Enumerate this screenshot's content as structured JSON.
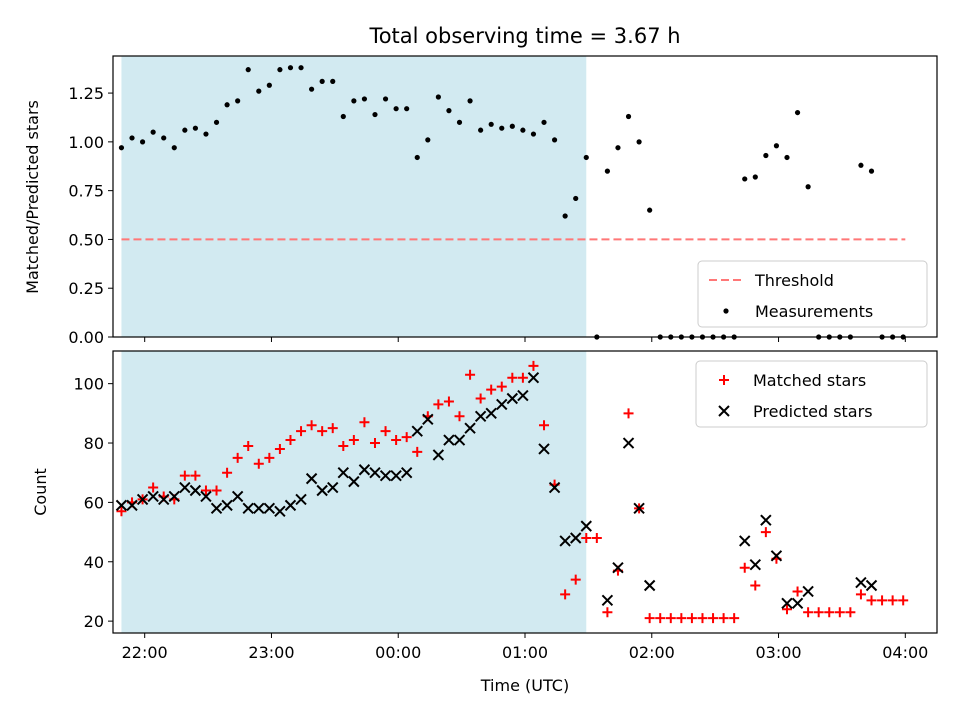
{
  "colors": {
    "shade": "#add8e6",
    "threshold": "#ff7777",
    "matched": "#ff0000",
    "predicted": "#000000",
    "measurement": "#000000"
  },
  "chart_data": [
    {
      "type": "scatter",
      "title": "Total observing time = 3.67 h",
      "xlabel": "",
      "ylabel": "Matched/Predicted stars",
      "xlim": [
        "21:45",
        "04:15"
      ],
      "ylim": [
        0,
        1.44
      ],
      "y_ticks": [
        "0.00",
        "0.25",
        "0.50",
        "0.75",
        "1.00",
        "1.25"
      ],
      "x_ticks": [
        "22:00",
        "23:00",
        "00:00",
        "01:00",
        "02:00",
        "03:00",
        "04:00"
      ],
      "shaded_span": [
        "21:49",
        "01:29"
      ],
      "threshold": {
        "name": "Threshold",
        "value": 0.5,
        "style": "dashed",
        "x_range": [
          "21:49",
          "04:00"
        ]
      },
      "legend": {
        "position": "lower right",
        "entries": [
          "Threshold",
          "Measurements"
        ]
      },
      "series": [
        {
          "name": "Measurements",
          "marker": "dot",
          "points": [
            [
              "21:49",
              0.97
            ],
            [
              "21:54",
              1.02
            ],
            [
              "21:59",
              1.0
            ],
            [
              "22:04",
              1.05
            ],
            [
              "22:09",
              1.02
            ],
            [
              "22:14",
              0.97
            ],
            [
              "22:19",
              1.06
            ],
            [
              "22:24",
              1.07
            ],
            [
              "22:29",
              1.04
            ],
            [
              "22:34",
              1.1
            ],
            [
              "22:39",
              1.19
            ],
            [
              "22:44",
              1.21
            ],
            [
              "22:49",
              1.37
            ],
            [
              "22:54",
              1.26
            ],
            [
              "22:59",
              1.29
            ],
            [
              "23:04",
              1.37
            ],
            [
              "23:09",
              1.38
            ],
            [
              "23:14",
              1.38
            ],
            [
              "23:19",
              1.27
            ],
            [
              "23:24",
              1.31
            ],
            [
              "23:29",
              1.31
            ],
            [
              "23:34",
              1.13
            ],
            [
              "23:39",
              1.21
            ],
            [
              "23:44",
              1.22
            ],
            [
              "23:49",
              1.14
            ],
            [
              "23:54",
              1.22
            ],
            [
              "23:59",
              1.17
            ],
            [
              "00:04",
              1.17
            ],
            [
              "00:09",
              0.92
            ],
            [
              "00:14",
              1.01
            ],
            [
              "00:19",
              1.23
            ],
            [
              "00:24",
              1.16
            ],
            [
              "00:29",
              1.1
            ],
            [
              "00:34",
              1.21
            ],
            [
              "00:39",
              1.06
            ],
            [
              "00:44",
              1.09
            ],
            [
              "00:49",
              1.07
            ],
            [
              "00:54",
              1.08
            ],
            [
              "00:59",
              1.06
            ],
            [
              "01:04",
              1.04
            ],
            [
              "01:09",
              1.1
            ],
            [
              "01:14",
              1.01
            ],
            [
              "01:19",
              0.62
            ],
            [
              "01:24",
              0.71
            ],
            [
              "01:29",
              0.92
            ],
            [
              "01:34",
              0.0
            ],
            [
              "01:39",
              0.85
            ],
            [
              "01:44",
              0.97
            ],
            [
              "01:49",
              1.13
            ],
            [
              "01:54",
              1.0
            ],
            [
              "01:59",
              0.65
            ],
            [
              "02:04",
              0.0
            ],
            [
              "02:09",
              0.0
            ],
            [
              "02:14",
              0.0
            ],
            [
              "02:19",
              0.0
            ],
            [
              "02:24",
              0.0
            ],
            [
              "02:29",
              0.0
            ],
            [
              "02:34",
              0.0
            ],
            [
              "02:39",
              0.0
            ],
            [
              "02:44",
              0.81
            ],
            [
              "02:49",
              0.82
            ],
            [
              "02:54",
              0.93
            ],
            [
              "02:59",
              0.98
            ],
            [
              "03:04",
              0.92
            ],
            [
              "03:09",
              1.15
            ],
            [
              "03:14",
              0.77
            ],
            [
              "03:19",
              0.0
            ],
            [
              "03:24",
              0.0
            ],
            [
              "03:29",
              0.0
            ],
            [
              "03:34",
              0.0
            ],
            [
              "03:39",
              0.88
            ],
            [
              "03:44",
              0.85
            ],
            [
              "03:49",
              0.0
            ],
            [
              "03:54",
              0.0
            ],
            [
              "03:59",
              0.0
            ]
          ]
        }
      ]
    },
    {
      "type": "scatter",
      "title": "",
      "xlabel": "Time (UTC)",
      "ylabel": "Count",
      "xlim": [
        "21:45",
        "04:15"
      ],
      "ylim": [
        16,
        111
      ],
      "y_ticks": [
        "20",
        "40",
        "60",
        "80",
        "100"
      ],
      "x_ticks": [
        "22:00",
        "23:00",
        "00:00",
        "01:00",
        "02:00",
        "03:00",
        "04:00"
      ],
      "shaded_span": [
        "21:49",
        "01:29"
      ],
      "legend": {
        "position": "upper right",
        "entries": [
          "Matched stars",
          "Predicted stars"
        ]
      },
      "series": [
        {
          "name": "Matched stars",
          "marker": "plus",
          "points": [
            [
              "21:49",
              57
            ],
            [
              "21:54",
              60
            ],
            [
              "21:59",
              61
            ],
            [
              "22:04",
              65
            ],
            [
              "22:09",
              62
            ],
            [
              "22:14",
              61
            ],
            [
              "22:19",
              69
            ],
            [
              "22:24",
              69
            ],
            [
              "22:29",
              64
            ],
            [
              "22:34",
              64
            ],
            [
              "22:39",
              70
            ],
            [
              "22:44",
              75
            ],
            [
              "22:49",
              79
            ],
            [
              "22:54",
              73
            ],
            [
              "22:59",
              75
            ],
            [
              "23:04",
              78
            ],
            [
              "23:09",
              81
            ],
            [
              "23:14",
              84
            ],
            [
              "23:19",
              86
            ],
            [
              "23:24",
              84
            ],
            [
              "23:29",
              85
            ],
            [
              "23:34",
              79
            ],
            [
              "23:39",
              81
            ],
            [
              "23:44",
              87
            ],
            [
              "23:49",
              80
            ],
            [
              "23:54",
              84
            ],
            [
              "23:59",
              81
            ],
            [
              "00:04",
              82
            ],
            [
              "00:09",
              77
            ],
            [
              "00:14",
              89
            ],
            [
              "00:19",
              93
            ],
            [
              "00:24",
              94
            ],
            [
              "00:29",
              89
            ],
            [
              "00:34",
              103
            ],
            [
              "00:39",
              95
            ],
            [
              "00:44",
              98
            ],
            [
              "00:49",
              99
            ],
            [
              "00:54",
              102
            ],
            [
              "00:59",
              102
            ],
            [
              "01:04",
              106
            ],
            [
              "01:09",
              86
            ],
            [
              "01:14",
              66
            ],
            [
              "01:19",
              29
            ],
            [
              "01:24",
              34
            ],
            [
              "01:29",
              48
            ],
            [
              "01:34",
              48
            ],
            [
              "01:39",
              23
            ],
            [
              "01:44",
              37
            ],
            [
              "01:49",
              90
            ],
            [
              "01:54",
              58
            ],
            [
              "01:59",
              21
            ],
            [
              "02:04",
              21
            ],
            [
              "02:09",
              21
            ],
            [
              "02:14",
              21
            ],
            [
              "02:19",
              21
            ],
            [
              "02:24",
              21
            ],
            [
              "02:29",
              21
            ],
            [
              "02:34",
              21
            ],
            [
              "02:39",
              21
            ],
            [
              "02:44",
              38
            ],
            [
              "02:49",
              32
            ],
            [
              "02:54",
              50
            ],
            [
              "02:59",
              41
            ],
            [
              "03:04",
              24
            ],
            [
              "03:09",
              30
            ],
            [
              "03:14",
              23
            ],
            [
              "03:19",
              23
            ],
            [
              "03:24",
              23
            ],
            [
              "03:29",
              23
            ],
            [
              "03:34",
              23
            ],
            [
              "03:39",
              29
            ],
            [
              "03:44",
              27
            ],
            [
              "03:49",
              27
            ],
            [
              "03:54",
              27
            ],
            [
              "03:59",
              27
            ]
          ]
        },
        {
          "name": "Predicted stars",
          "marker": "x",
          "points": [
            [
              "21:49",
              59
            ],
            [
              "21:54",
              59
            ],
            [
              "21:59",
              61
            ],
            [
              "22:04",
              62
            ],
            [
              "22:09",
              61
            ],
            [
              "22:14",
              62
            ],
            [
              "22:19",
              65
            ],
            [
              "22:24",
              64
            ],
            [
              "22:29",
              62
            ],
            [
              "22:34",
              58
            ],
            [
              "22:39",
              59
            ],
            [
              "22:44",
              62
            ],
            [
              "22:49",
              58
            ],
            [
              "22:54",
              58
            ],
            [
              "22:59",
              58
            ],
            [
              "23:04",
              57
            ],
            [
              "23:09",
              59
            ],
            [
              "23:14",
              61
            ],
            [
              "23:19",
              68
            ],
            [
              "23:24",
              64
            ],
            [
              "23:29",
              65
            ],
            [
              "23:34",
              70
            ],
            [
              "23:39",
              67
            ],
            [
              "23:44",
              71
            ],
            [
              "23:49",
              70
            ],
            [
              "23:54",
              69
            ],
            [
              "23:59",
              69
            ],
            [
              "00:04",
              70
            ],
            [
              "00:09",
              84
            ],
            [
              "00:14",
              88
            ],
            [
              "00:19",
              76
            ],
            [
              "00:24",
              81
            ],
            [
              "00:29",
              81
            ],
            [
              "00:34",
              85
            ],
            [
              "00:39",
              89
            ],
            [
              "00:44",
              90
            ],
            [
              "00:49",
              93
            ],
            [
              "00:54",
              95
            ],
            [
              "00:59",
              96
            ],
            [
              "01:04",
              102
            ],
            [
              "01:09",
              78
            ],
            [
              "01:14",
              65
            ],
            [
              "01:19",
              47
            ],
            [
              "01:24",
              48
            ],
            [
              "01:29",
              52
            ],
            [
              "01:39",
              27
            ],
            [
              "01:44",
              38
            ],
            [
              "01:49",
              80
            ],
            [
              "01:54",
              58
            ],
            [
              "01:59",
              32
            ],
            [
              "02:44",
              47
            ],
            [
              "02:49",
              39
            ],
            [
              "02:54",
              54
            ],
            [
              "02:59",
              42
            ],
            [
              "03:04",
              26
            ],
            [
              "03:09",
              26
            ],
            [
              "03:14",
              30
            ],
            [
              "03:39",
              33
            ],
            [
              "03:44",
              32
            ]
          ]
        }
      ]
    }
  ]
}
